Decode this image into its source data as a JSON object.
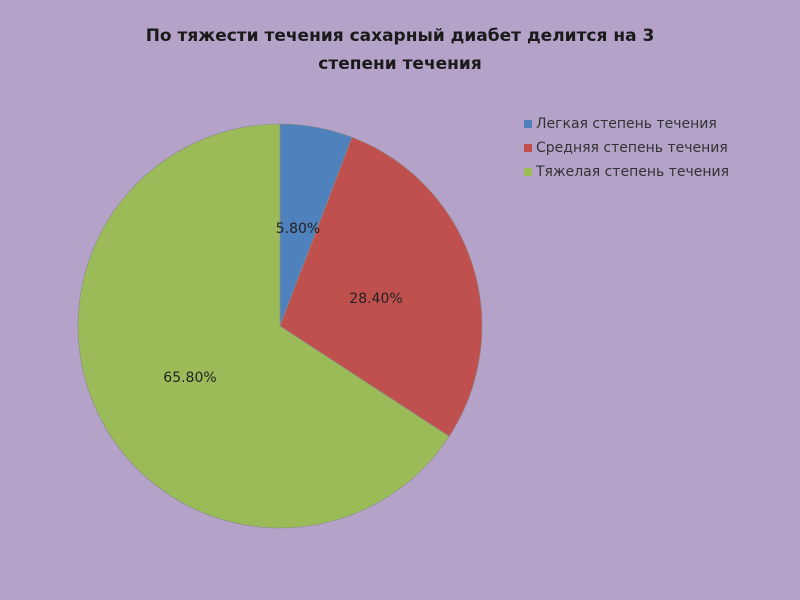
{
  "chart_data": {
    "type": "pie",
    "title_lines": [
      "По тяжести течения сахарный диабет делится на 3",
      "степени течения"
    ],
    "categories": [
      "Легкая степень течения",
      "Средняя степень течения",
      "Тяжелая степень  течения"
    ],
    "values": [
      5.8,
      28.4,
      65.8
    ],
    "data_labels": [
      "5.80%",
      "28.40%",
      "65.80%"
    ],
    "colors": [
      "#4f81bd",
      "#c0504d",
      "#9bbb59"
    ],
    "start": "top",
    "direction": "clockwise",
    "legend_position": "top-right"
  },
  "background": "#b4a2c9"
}
